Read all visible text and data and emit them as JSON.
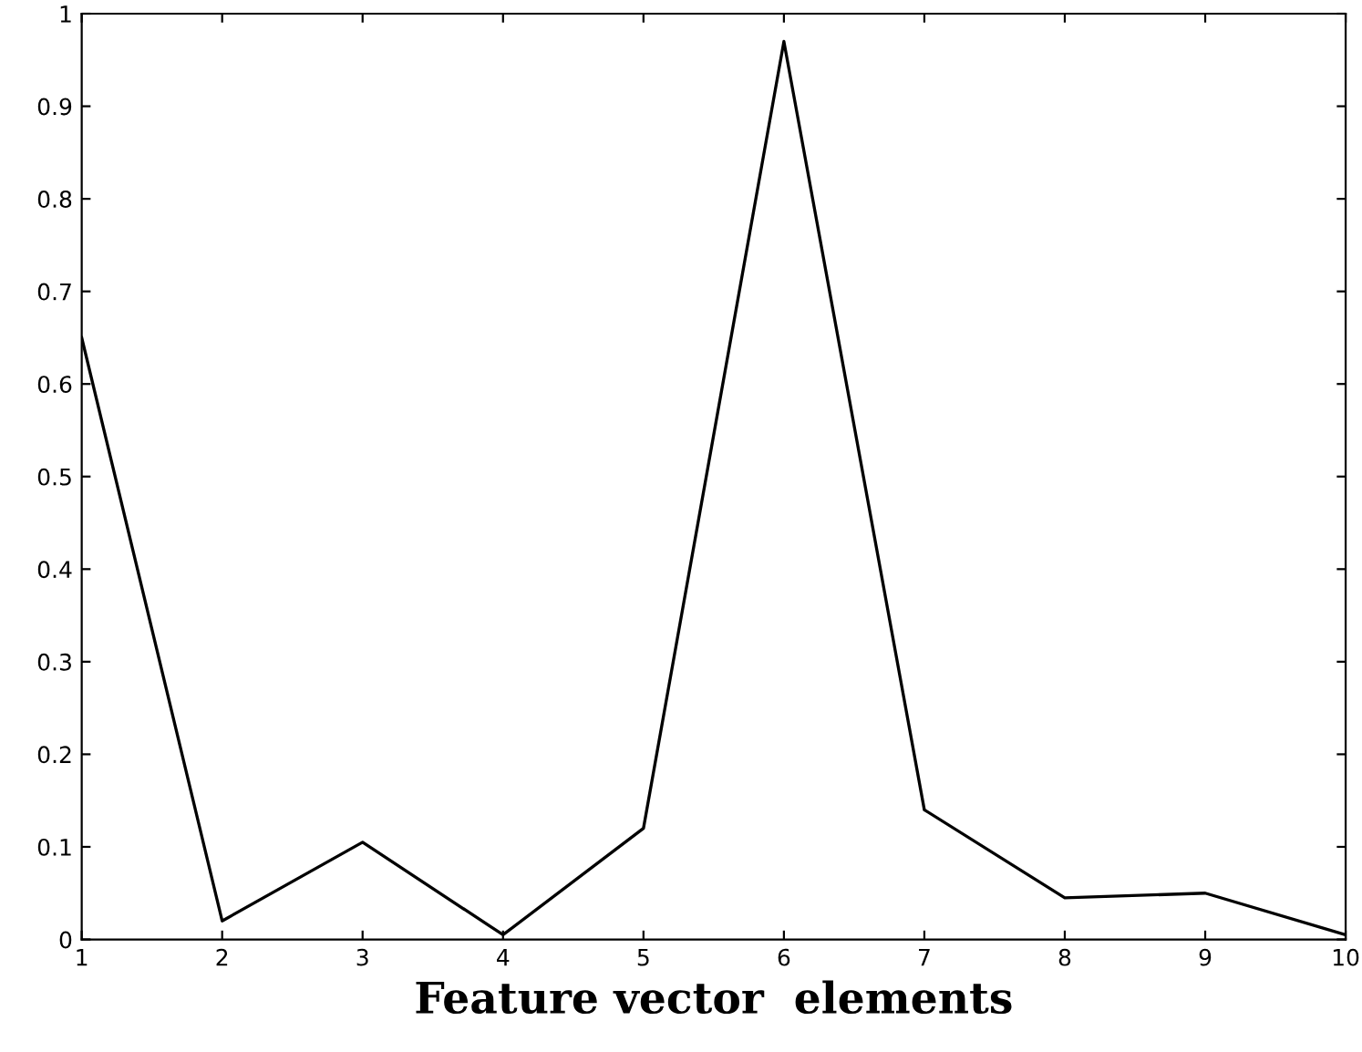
{
  "chart_data": {
    "type": "line",
    "xlabel": "Feature vector  elements",
    "x": [
      1,
      2,
      3,
      4,
      5,
      6,
      7,
      8,
      9,
      10
    ],
    "series": [
      {
        "color": "#000000",
        "values": [
          0.65,
          0.02,
          0.105,
          0.005,
          0.12,
          0.97,
          0.14,
          0.045,
          0.05,
          0.005
        ]
      }
    ],
    "xlim": [
      1,
      10
    ],
    "xticks": [
      1,
      2,
      3,
      4,
      5,
      6,
      7,
      8,
      9,
      10
    ],
    "ylim": [
      0,
      1
    ],
    "yticks": [
      0,
      0.1,
      0.2,
      0.3,
      0.4,
      0.5,
      0.6,
      0.7,
      0.8,
      0.9,
      1
    ],
    "grid": false,
    "legend": false,
    "marker": "none",
    "line_style": "solid"
  }
}
